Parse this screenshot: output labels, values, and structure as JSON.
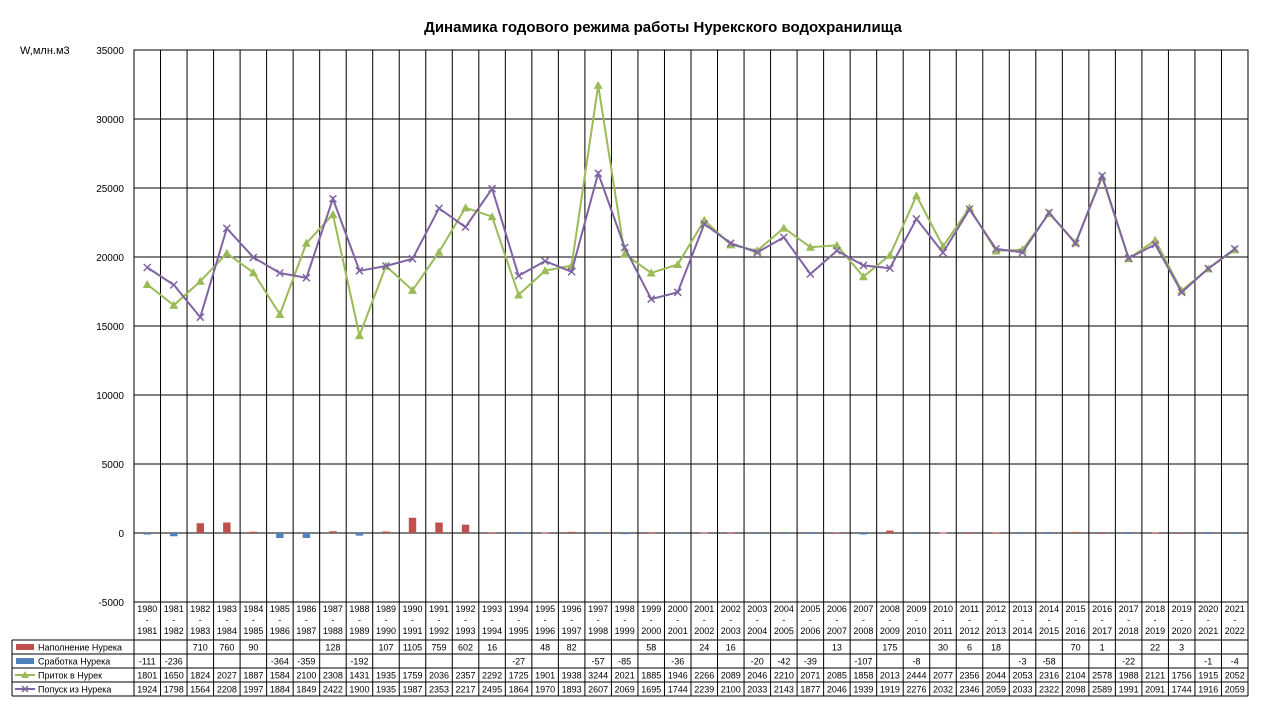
{
  "chart_data": {
    "type": "bar+line",
    "title": "Динамика годового режима работы Нурекского водохранилища",
    "ylabel": "W,млн.м3",
    "ylim": [
      -5000,
      35000
    ],
    "yticks": [
      -5000,
      0,
      5000,
      10000,
      15000,
      20000,
      25000,
      30000,
      35000
    ],
    "grid": true,
    "legend": "data-table-left",
    "categories": [
      [
        "1980",
        "-",
        "1981"
      ],
      [
        "1981",
        "-",
        "1982"
      ],
      [
        "1982",
        "-",
        "1983"
      ],
      [
        "1983",
        "-",
        "1984"
      ],
      [
        "1984",
        "-",
        "1985"
      ],
      [
        "1985",
        "-",
        "1986"
      ],
      [
        "1986",
        "-",
        "1987"
      ],
      [
        "1987",
        "-",
        "1988"
      ],
      [
        "1988",
        "-",
        "1989"
      ],
      [
        "1989",
        "-",
        "1990"
      ],
      [
        "1990",
        "-",
        "1991"
      ],
      [
        "1991",
        "-",
        "1992"
      ],
      [
        "1992",
        "-",
        "1993"
      ],
      [
        "1993",
        "-",
        "1994"
      ],
      [
        "1994",
        "-",
        "1995"
      ],
      [
        "1995",
        "-",
        "1996"
      ],
      [
        "1996",
        "-",
        "1997"
      ],
      [
        "1997",
        "-",
        "1998"
      ],
      [
        "1998",
        "-",
        "1999"
      ],
      [
        "1999",
        "-",
        "2000"
      ],
      [
        "2000",
        "-",
        "2001"
      ],
      [
        "2001",
        "-",
        "2002"
      ],
      [
        "2002",
        "-",
        "2003"
      ],
      [
        "2003",
        "-",
        "2004"
      ],
      [
        "2004",
        "-",
        "2005"
      ],
      [
        "2005",
        "-",
        "2006"
      ],
      [
        "2006",
        "-",
        "2007"
      ],
      [
        "2007",
        "-",
        "2008"
      ],
      [
        "2008",
        "-",
        "2009"
      ],
      [
        "2009",
        "-",
        "2010"
      ],
      [
        "2010",
        "-",
        "2011"
      ],
      [
        "2011",
        "-",
        "2012"
      ],
      [
        "2012",
        "-",
        "2013"
      ],
      [
        "2013",
        "-",
        "2014"
      ],
      [
        "2014",
        "-",
        "2015"
      ],
      [
        "2015",
        "-",
        "2016"
      ],
      [
        "2016",
        "-",
        "2017"
      ],
      [
        "2017",
        "-",
        "2018"
      ],
      [
        "2018",
        "-",
        "2019"
      ],
      [
        "2019",
        "-",
        "2020"
      ],
      [
        "2020",
        "-",
        "2021"
      ],
      [
        "2021",
        "-",
        "2022"
      ]
    ],
    "series": [
      {
        "name": "Наполнение Нурека",
        "type": "bar",
        "color": "#c0504d",
        "values": [
          null,
          null,
          710,
          760,
          90,
          null,
          null,
          128,
          null,
          107,
          1105,
          759,
          602,
          16,
          null,
          48,
          82,
          null,
          null,
          58,
          null,
          24,
          16,
          null,
          null,
          null,
          13,
          null,
          175,
          null,
          30,
          6,
          18,
          null,
          null,
          70,
          1,
          null,
          22,
          3,
          null,
          null
        ]
      },
      {
        "name": "Сработка Нурека",
        "type": "bar",
        "color": "#4f81bd",
        "values": [
          -111,
          -236,
          null,
          null,
          null,
          -364,
          -359,
          null,
          -192,
          null,
          null,
          null,
          null,
          null,
          -27,
          null,
          null,
          -57,
          -85,
          null,
          -36,
          null,
          null,
          -20,
          -42,
          -39,
          null,
          -107,
          null,
          -8,
          null,
          null,
          null,
          -3,
          -58,
          null,
          null,
          -22,
          null,
          null,
          -1,
          -4
        ]
      },
      {
        "name": "Приток в Нурек",
        "type": "line",
        "color": "#9bbb59",
        "marker": "triangle",
        "table_values": [
          1801,
          1650,
          1824,
          2027,
          1887,
          1584,
          2100,
          2308,
          1431,
          1935,
          1759,
          2036,
          2357,
          2292,
          1725,
          1901,
          1938,
          3244,
          2021,
          1885,
          1946,
          2266,
          2089,
          2046,
          2210,
          2071,
          2085,
          1858,
          2013,
          2444,
          2077,
          2356,
          2044,
          2053,
          2316,
          2104,
          2578,
          1988,
          2121,
          1756,
          1915,
          2052
        ],
        "values": [
          18010,
          16500,
          18240,
          20270,
          18870,
          15840,
          21000,
          23080,
          14310,
          19350,
          17590,
          20360,
          23570,
          22920,
          17250,
          19010,
          19380,
          32440,
          20210,
          18850,
          19460,
          22660,
          20890,
          20460,
          22100,
          20710,
          20850,
          18580,
          20130,
          24440,
          20770,
          23560,
          20440,
          20530,
          23160,
          21040,
          25780,
          19880,
          21210,
          17560,
          19150,
          20520
        ]
      },
      {
        "name": "Попуск из Нурека",
        "type": "line",
        "color": "#8064a2",
        "marker": "x",
        "table_values": [
          1924,
          1798,
          1564,
          2208,
          1997,
          1884,
          1849,
          2422,
          1900,
          1935,
          1987,
          2353,
          2217,
          2495,
          1864,
          1970,
          1893,
          2607,
          2069,
          1695,
          1744,
          2239,
          2100,
          2033,
          2143,
          1877,
          2046,
          1939,
          1919,
          2276,
          2032,
          2346,
          2059,
          2033,
          2322,
          2098,
          2589,
          1991,
          2091,
          1744,
          1916,
          2059
        ],
        "values": [
          19240,
          17980,
          15640,
          22080,
          19970,
          18840,
          18490,
          24220,
          19000,
          19350,
          19870,
          23530,
          22170,
          24950,
          18640,
          19700,
          18930,
          26070,
          20690,
          16950,
          17440,
          22390,
          21000,
          20330,
          21430,
          18770,
          20460,
          19390,
          19190,
          22760,
          20320,
          23460,
          20590,
          20330,
          23220,
          20980,
          25890,
          19910,
          20910,
          17440,
          19160,
          20590
        ]
      }
    ]
  }
}
